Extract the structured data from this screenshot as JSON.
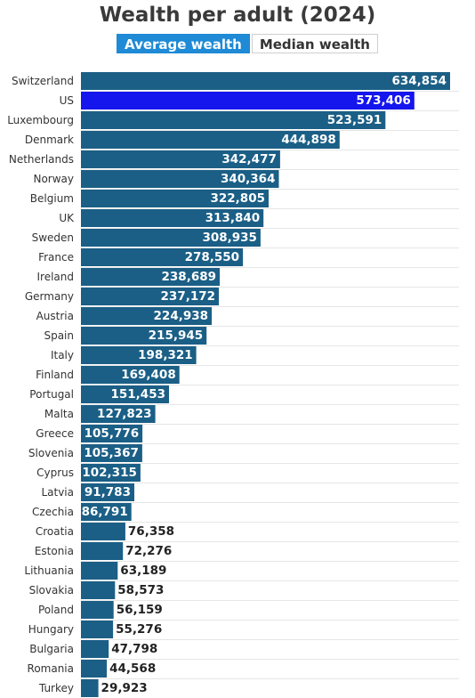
{
  "title": "Wealth per adult (2024)",
  "toggle": {
    "average_label": "Average wealth",
    "median_label": "Median wealth",
    "selected": "Average wealth"
  },
  "colors": {
    "bar": "#1b5f86",
    "highlight": "#1515ee",
    "active_button": "#1f8ad6",
    "label_inside": "#ffffff",
    "label_outside": "#222222",
    "grid": "#e6e6e6"
  },
  "chart_data": {
    "type": "bar",
    "orientation": "horizontal",
    "title": "Wealth per adult (2024)",
    "highlight_category": "US",
    "categories": [
      "Switzerland",
      "US",
      "Luxembourg",
      "Denmark",
      "Netherlands",
      "Norway",
      "Belgium",
      "UK",
      "Sweden",
      "France",
      "Ireland",
      "Germany",
      "Austria",
      "Spain",
      "Italy",
      "Finland",
      "Portugal",
      "Malta",
      "Greece",
      "Slovenia",
      "Cyprus",
      "Latvia",
      "Czechia",
      "Croatia",
      "Estonia",
      "Lithuania",
      "Slovakia",
      "Poland",
      "Hungary",
      "Bulgaria",
      "Romania",
      "Turkey"
    ],
    "values": [
      634854,
      573406,
      523591,
      444898,
      342477,
      340364,
      322805,
      313840,
      308935,
      278550,
      238689,
      237172,
      224938,
      215945,
      198321,
      169408,
      151453,
      127823,
      105776,
      105367,
      102315,
      91783,
      86791,
      76358,
      72276,
      63189,
      58573,
      56159,
      55276,
      47798,
      44568,
      29923
    ],
    "value_labels": [
      "634,854",
      "573,406",
      "523,591",
      "444,898",
      "342,477",
      "340,364",
      "322,805",
      "313,840",
      "308,935",
      "278,550",
      "238,689",
      "237,172",
      "224,938",
      "215,945",
      "198,321",
      "169,408",
      "151,453",
      "127,823",
      "105,776",
      "105,367",
      "102,315",
      "91,783",
      "86,791",
      "76,358",
      "72,276",
      "63,189",
      "58,573",
      "56,159",
      "55,276",
      "47,798",
      "44,568",
      "29,923"
    ],
    "grid": true,
    "legend": "none"
  }
}
